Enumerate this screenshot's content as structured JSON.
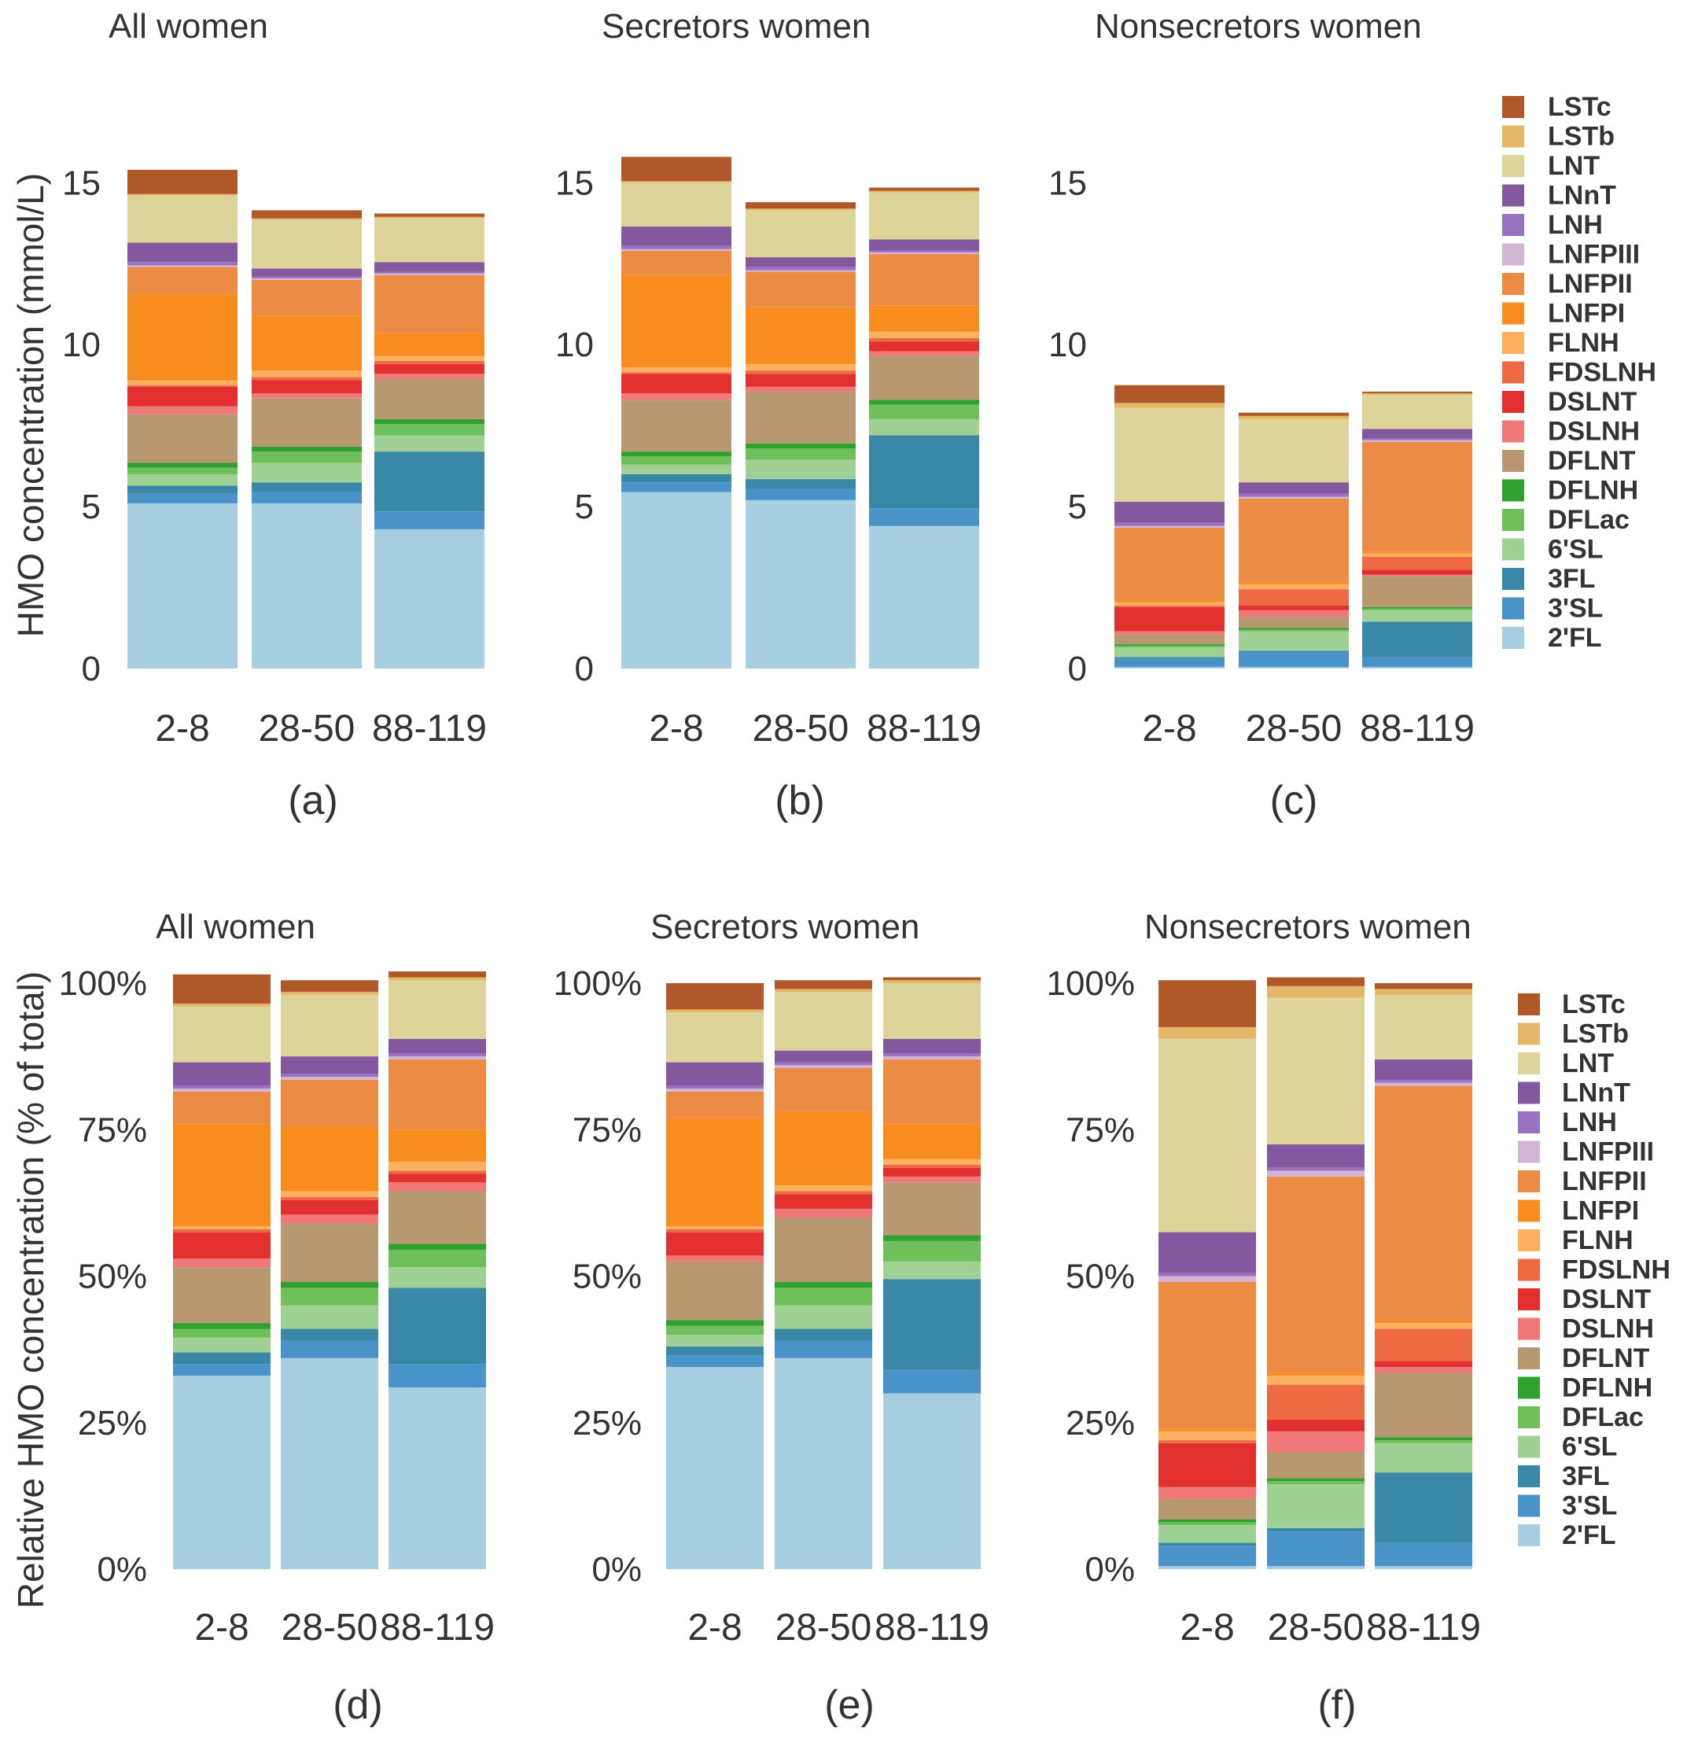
{
  "ylabels": {
    "absolute": "HMO concentration (mmol/L)",
    "relative": "Relative HMO concentration (% of total)"
  },
  "legend_keys": [
    "LSTc",
    "LSTb",
    "LNT",
    "LNnT",
    "LNH",
    "LNFPIII",
    "LNFPII",
    "LNFPI",
    "FLNH",
    "FDSLNH",
    "DSLNT",
    "DSLNH",
    "DFLNT",
    "DFLNH",
    "DFLac",
    "6'SL",
    "3FL",
    "3'SL",
    "2'FL"
  ],
  "legend_labels": [
    "LSTc",
    "LSTb",
    "LNT",
    "LNnT",
    "LNH",
    "LNFPIII",
    "LNFPII",
    "LNFPI",
    "FLNH",
    "FDSLNH",
    "DSLNT",
    "DSLNH",
    "DFLNT",
    "DFLNH",
    "DFLac",
    "6'SL",
    "3FL",
    "3'SL",
    "2'FL"
  ],
  "colors": {
    "2'FL": "#a8cee2",
    "3'SL": "#4a93c9",
    "3FL": "#3a88a8",
    "6'SL": "#9fd094",
    "DFLac": "#6fbf5a",
    "DFLNH": "#30a030",
    "DFLNT": "#b89870",
    "DSLNH": "#f07878",
    "DSLNT": "#e2302e",
    "FDSLNH": "#ee6a44",
    "FLNH": "#fcb060",
    "LNFPI": "#f88c1e",
    "LNFPII": "#ec8c44",
    "LNFPIII": "#d4b4d4",
    "LNH": "#9a70c0",
    "LNnT": "#84589e",
    "LNT": "#ddd49a",
    "LSTb": "#e4b868",
    "LSTc": "#b0582a"
  },
  "chart_data": [
    {
      "label": "(a)",
      "type": "bar",
      "stacked": true,
      "title": "All women",
      "categories": [
        "2-8",
        "28-50",
        "88-119"
      ],
      "ylabel": "HMO concentration (mmol/L)",
      "ylim": [
        0,
        17
      ],
      "yticks": [
        "0",
        "5",
        "10",
        "15"
      ],
      "series": [
        {
          "name": "2'FL",
          "values": [
            5.1,
            5.1,
            4.3
          ]
        },
        {
          "name": "3'SL",
          "values": [
            0.3,
            0.35,
            0.55
          ]
        },
        {
          "name": "3FL",
          "values": [
            0.25,
            0.3,
            1.85
          ]
        },
        {
          "name": "6'SL",
          "values": [
            0.35,
            0.6,
            0.5
          ]
        },
        {
          "name": "DFLac",
          "values": [
            0.2,
            0.35,
            0.35
          ]
        },
        {
          "name": "DFLNH",
          "values": [
            0.15,
            0.15,
            0.15
          ]
        },
        {
          "name": "DFLNT",
          "values": [
            1.5,
            1.5,
            1.25
          ]
        },
        {
          "name": "DSLNH",
          "values": [
            0.25,
            0.15,
            0.15
          ]
        },
        {
          "name": "DSLNT",
          "values": [
            0.6,
            0.4,
            0.3
          ]
        },
        {
          "name": "FDSLNH",
          "values": [
            0.05,
            0.1,
            0.1
          ]
        },
        {
          "name": "FLNH",
          "values": [
            0.15,
            0.2,
            0.15
          ]
        },
        {
          "name": "LNFPI",
          "values": [
            2.65,
            1.7,
            0.7
          ]
        },
        {
          "name": "LNFPII",
          "values": [
            0.85,
            1.1,
            1.8
          ]
        },
        {
          "name": "LNFPIII",
          "values": [
            0.05,
            0.05,
            0.05
          ]
        },
        {
          "name": "LNH",
          "values": [
            0.1,
            0.05,
            0.05
          ]
        },
        {
          "name": "LNnT",
          "values": [
            0.6,
            0.25,
            0.3
          ]
        },
        {
          "name": "LNT",
          "values": [
            1.45,
            1.5,
            1.35
          ]
        },
        {
          "name": "LSTb",
          "values": [
            0.05,
            0.05,
            0.05
          ]
        },
        {
          "name": "LSTc",
          "values": [
            0.75,
            0.25,
            0.1
          ]
        }
      ]
    },
    {
      "label": "(b)",
      "type": "bar",
      "stacked": true,
      "title": "Secretors women",
      "categories": [
        "2-8",
        "28-50",
        "88-119"
      ],
      "ylabel": "HMO concentration (mmol/L)",
      "ylim": [
        0,
        17
      ],
      "yticks": [
        "0",
        "5",
        "10",
        "15"
      ],
      "series": [
        {
          "name": "2'FL",
          "values": [
            5.45,
            5.2,
            4.4
          ]
        },
        {
          "name": "3'SL",
          "values": [
            0.3,
            0.35,
            0.55
          ]
        },
        {
          "name": "3FL",
          "values": [
            0.25,
            0.3,
            2.25
          ]
        },
        {
          "name": "6'SL",
          "values": [
            0.3,
            0.6,
            0.5
          ]
        },
        {
          "name": "DFLac",
          "values": [
            0.25,
            0.35,
            0.45
          ]
        },
        {
          "name": "DFLNH",
          "values": [
            0.15,
            0.15,
            0.15
          ]
        },
        {
          "name": "DFLNT",
          "values": [
            1.6,
            1.6,
            1.35
          ]
        },
        {
          "name": "DSLNH",
          "values": [
            0.2,
            0.15,
            0.15
          ]
        },
        {
          "name": "DSLNT",
          "values": [
            0.6,
            0.4,
            0.3
          ]
        },
        {
          "name": "FDSLNH",
          "values": [
            0.05,
            0.1,
            0.1
          ]
        },
        {
          "name": "FLNH",
          "values": [
            0.15,
            0.2,
            0.2
          ]
        },
        {
          "name": "LNFPI",
          "values": [
            2.85,
            1.75,
            0.8
          ]
        },
        {
          "name": "LNFPII",
          "values": [
            0.75,
            1.1,
            1.6
          ]
        },
        {
          "name": "LNFPIII",
          "values": [
            0.05,
            0.05,
            0.05
          ]
        },
        {
          "name": "LNH",
          "values": [
            0.1,
            0.1,
            0.05
          ]
        },
        {
          "name": "LNnT",
          "values": [
            0.6,
            0.3,
            0.35
          ]
        },
        {
          "name": "LNT",
          "values": [
            1.35,
            1.45,
            1.45
          ]
        },
        {
          "name": "LSTb",
          "values": [
            0.05,
            0.05,
            0.05
          ]
        },
        {
          "name": "LSTc",
          "values": [
            0.75,
            0.2,
            0.1
          ]
        }
      ]
    },
    {
      "label": "(c)",
      "type": "bar",
      "stacked": true,
      "title": "Nonsecretors women",
      "categories": [
        "2-8",
        "28-50",
        "88-119"
      ],
      "ylabel": "HMO concentration (mmol/L)",
      "ylim": [
        0,
        17
      ],
      "yticks": [
        "0",
        "5",
        "10",
        "15"
      ],
      "series": [
        {
          "name": "2'FL",
          "values": [
            0.05,
            0.05,
            0.05
          ]
        },
        {
          "name": "3'SL",
          "values": [
            0.25,
            0.45,
            0.3
          ]
        },
        {
          "name": "3FL",
          "values": [
            0.05,
            0.05,
            1.1
          ]
        },
        {
          "name": "6'SL",
          "values": [
            0.3,
            0.6,
            0.35
          ]
        },
        {
          "name": "DFLac",
          "values": [
            0.05,
            0.05,
            0.05
          ]
        },
        {
          "name": "DFLNH",
          "values": [
            0.05,
            0.05,
            0.05
          ]
        },
        {
          "name": "DFLNT",
          "values": [
            0.3,
            0.35,
            0.95
          ]
        },
        {
          "name": "DSLNH",
          "values": [
            0.1,
            0.2,
            0.05
          ]
        },
        {
          "name": "DSLNT",
          "values": [
            0.75,
            0.15,
            0.15
          ]
        },
        {
          "name": "FDSLNH",
          "values": [
            0.05,
            0.5,
            0.4
          ]
        },
        {
          "name": "FLNH",
          "values": [
            0.1,
            0.15,
            0.1
          ]
        },
        {
          "name": "LNFPI",
          "values": [
            0.05,
            0.05,
            0.05
          ]
        },
        {
          "name": "LNFPII",
          "values": [
            2.25,
            2.6,
            3.4
          ]
        },
        {
          "name": "LNFPIII",
          "values": [
            0.05,
            0.05,
            0.05
          ]
        },
        {
          "name": "LNH",
          "values": [
            0.1,
            0.1,
            0.05
          ]
        },
        {
          "name": "LNnT",
          "values": [
            0.65,
            0.35,
            0.3
          ]
        },
        {
          "name": "LNT",
          "values": [
            2.9,
            1.95,
            1.05
          ]
        },
        {
          "name": "LSTb",
          "values": [
            0.15,
            0.1,
            0.05
          ]
        },
        {
          "name": "LSTc",
          "values": [
            0.55,
            0.1,
            0.05
          ]
        }
      ]
    },
    {
      "label": "(d)",
      "type": "bar",
      "stacked": true,
      "title": "All women",
      "categories": [
        "2-8",
        "28-50",
        "88-119"
      ],
      "ylabel": "Relative HMO concentration (% of total)",
      "ylim": [
        0,
        100
      ],
      "yticks": [
        "0%",
        "25%",
        "50%",
        "75%",
        "100%"
      ],
      "series": [
        {
          "name": "2'FL",
          "values": [
            33,
            36,
            31
          ]
        },
        {
          "name": "3'SL",
          "values": [
            2,
            3,
            4
          ]
        },
        {
          "name": "3FL",
          "values": [
            2,
            2,
            13
          ]
        },
        {
          "name": "6'SL",
          "values": [
            2.5,
            4,
            3.5
          ]
        },
        {
          "name": "DFLac",
          "values": [
            1.5,
            3,
            3
          ]
        },
        {
          "name": "DFLNH",
          "values": [
            1,
            1,
            1
          ]
        },
        {
          "name": "DFLNT",
          "values": [
            9.5,
            10,
            9
          ]
        },
        {
          "name": "DSLNH",
          "values": [
            1.5,
            1.5,
            1.5
          ]
        },
        {
          "name": "DSLNT",
          "values": [
            4.5,
            2.5,
            1.5
          ]
        },
        {
          "name": "FDSLNH",
          "values": [
            0.5,
            0.5,
            0.5
          ]
        },
        {
          "name": "FLNH",
          "values": [
            0.5,
            1,
            1.5
          ]
        },
        {
          "name": "LNFPI",
          "values": [
            17.5,
            11,
            5.5
          ]
        },
        {
          "name": "LNFPII",
          "values": [
            5.5,
            8,
            12
          ]
        },
        {
          "name": "LNFPIII",
          "values": [
            0.5,
            0.5,
            0.5
          ]
        },
        {
          "name": "LNH",
          "values": [
            0.5,
            0.5,
            0.5
          ]
        },
        {
          "name": "LNnT",
          "values": [
            4,
            3,
            2.5
          ]
        },
        {
          "name": "LNT",
          "values": [
            9.5,
            10.5,
            10
          ]
        },
        {
          "name": "LSTb",
          "values": [
            0.5,
            0.5,
            0.5
          ]
        },
        {
          "name": "LSTc",
          "values": [
            5,
            2,
            1
          ]
        }
      ]
    },
    {
      "label": "(e)",
      "type": "bar",
      "stacked": true,
      "title": "Secretors women",
      "categories": [
        "2-8",
        "28-50",
        "88-119"
      ],
      "ylabel": "Relative HMO concentration (% of total)",
      "ylim": [
        0,
        100
      ],
      "yticks": [
        "0%",
        "25%",
        "50%",
        "75%",
        "100%"
      ],
      "series": [
        {
          "name": "2'FL",
          "values": [
            34.5,
            36,
            30
          ]
        },
        {
          "name": "3'SL",
          "values": [
            2,
            3,
            4
          ]
        },
        {
          "name": "3FL",
          "values": [
            1.5,
            2,
            15.5
          ]
        },
        {
          "name": "6'SL",
          "values": [
            2,
            4,
            3
          ]
        },
        {
          "name": "DFLac",
          "values": [
            1.5,
            3,
            3.5
          ]
        },
        {
          "name": "DFLNH",
          "values": [
            1,
            1,
            1
          ]
        },
        {
          "name": "DFLNT",
          "values": [
            10,
            11,
            9
          ]
        },
        {
          "name": "DSLNH",
          "values": [
            1,
            1.5,
            1
          ]
        },
        {
          "name": "DSLNT",
          "values": [
            4,
            2.5,
            1.5
          ]
        },
        {
          "name": "FDSLNH",
          "values": [
            0.5,
            0.5,
            0.5
          ]
        },
        {
          "name": "FLNH",
          "values": [
            0.5,
            1,
            1
          ]
        },
        {
          "name": "LNFPI",
          "values": [
            18.5,
            12.5,
            6
          ]
        },
        {
          "name": "LNFPII",
          "values": [
            4.5,
            7.5,
            11
          ]
        },
        {
          "name": "LNFPIII",
          "values": [
            0.5,
            0.5,
            0.5
          ]
        },
        {
          "name": "LNH",
          "values": [
            0.5,
            0.5,
            0.5
          ]
        },
        {
          "name": "LNnT",
          "values": [
            4,
            2,
            2.5
          ]
        },
        {
          "name": "LNT",
          "values": [
            8.5,
            10,
            9.5
          ]
        },
        {
          "name": "LSTb",
          "values": [
            0.5,
            0.5,
            0.5
          ]
        },
        {
          "name": "LSTc",
          "values": [
            4.5,
            1.5,
            0.5
          ]
        }
      ]
    },
    {
      "label": "(f)",
      "type": "bar",
      "stacked": true,
      "title": "Nonsecretors women",
      "categories": [
        "2-8",
        "28-50",
        "88-119"
      ],
      "ylabel": "Relative HMO concentration (% of total)",
      "ylim": [
        0,
        100
      ],
      "yticks": [
        "0%",
        "25%",
        "50%",
        "75%",
        "100%"
      ],
      "series": [
        {
          "name": "2'FL",
          "values": [
            0.5,
            0.5,
            0.5
          ]
        },
        {
          "name": "3'SL",
          "values": [
            3.5,
            6,
            4
          ]
        },
        {
          "name": "3FL",
          "values": [
            0.5,
            0.5,
            12
          ]
        },
        {
          "name": "6'SL",
          "values": [
            3,
            7.5,
            5
          ]
        },
        {
          "name": "DFLac",
          "values": [
            0.5,
            0.5,
            0.5
          ]
        },
        {
          "name": "DFLNH",
          "values": [
            0.5,
            0.5,
            0.5
          ]
        },
        {
          "name": "DFLNT",
          "values": [
            3.5,
            4.5,
            11
          ]
        },
        {
          "name": "DSLNH",
          "values": [
            2,
            3.5,
            1
          ]
        },
        {
          "name": "DSLNT",
          "values": [
            7.5,
            2,
            1
          ]
        },
        {
          "name": "FDSLNH",
          "values": [
            0.5,
            6,
            5.5
          ]
        },
        {
          "name": "FLNH",
          "values": [
            1.5,
            1.5,
            1
          ]
        },
        {
          "name": "LNFPI",
          "values": [
            0.5,
            0.5,
            0.5
          ]
        },
        {
          "name": "LNFPII",
          "values": [
            25,
            33.5,
            40
          ]
        },
        {
          "name": "LNFPIII",
          "values": [
            1,
            1,
            0.5
          ]
        },
        {
          "name": "LNH",
          "values": [
            0.5,
            0.5,
            0.5
          ]
        },
        {
          "name": "LNnT",
          "values": [
            7,
            4,
            3.5
          ]
        },
        {
          "name": "LNT",
          "values": [
            33,
            25,
            11
          ]
        },
        {
          "name": "LSTb",
          "values": [
            2,
            2,
            1
          ]
        },
        {
          "name": "LSTc",
          "values": [
            8,
            1.5,
            1
          ]
        }
      ]
    }
  ]
}
